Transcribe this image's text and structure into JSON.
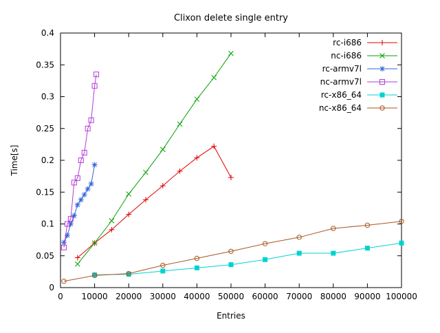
{
  "chart_data": {
    "type": "line",
    "title": "Clixon delete single entry",
    "xlabel": "Entries",
    "ylabel": "Time[s]",
    "xlim": [
      0,
      100000
    ],
    "ylim": [
      0,
      0.4
    ],
    "xticks": [
      0,
      10000,
      20000,
      30000,
      40000,
      50000,
      60000,
      70000,
      80000,
      90000,
      100000
    ],
    "xtick_labels": [
      "0",
      "10000",
      "20000",
      "30000",
      "40000",
      "50000",
      "60000",
      "70000",
      "80000",
      "90000",
      "100000"
    ],
    "yticks": [
      0,
      0.05,
      0.1,
      0.15,
      0.2,
      0.25,
      0.3,
      0.35,
      0.4
    ],
    "ytick_labels": [
      "0",
      "0.05",
      "0.1",
      "0.15",
      "0.2",
      "0.25",
      "0.3",
      "0.35",
      "0.4"
    ],
    "grid": false,
    "legend_position": "top-right",
    "background_color": "#ffffff",
    "border_color": "#000000",
    "series": [
      {
        "name": "rc-i686",
        "color": "#e00000",
        "marker": "plus",
        "x": [
          5000,
          10000,
          15000,
          20000,
          25000,
          30000,
          35000,
          40000,
          45000,
          50000
        ],
        "y": [
          0.047,
          0.07,
          0.091,
          0.115,
          0.138,
          0.16,
          0.183,
          0.204,
          0.222,
          0.173
        ]
      },
      {
        "name": "nc-i686",
        "color": "#00a000",
        "marker": "cross",
        "x": [
          5000,
          10000,
          15000,
          20000,
          25000,
          30000,
          35000,
          40000,
          45000,
          50000
        ],
        "y": [
          0.037,
          0.07,
          0.105,
          0.147,
          0.181,
          0.217,
          0.257,
          0.296,
          0.33,
          0.368
        ]
      },
      {
        "name": "rc-armv7l",
        "color": "#2e63d8",
        "marker": "asterisk",
        "x": [
          1000,
          2000,
          3000,
          4000,
          5000,
          6000,
          7000,
          8000,
          9000,
          10000
        ],
        "y": [
          0.071,
          0.082,
          0.1,
          0.113,
          0.13,
          0.138,
          0.146,
          0.155,
          0.163,
          0.193
        ]
      },
      {
        "name": "nc-armv7l",
        "color": "#b23ad6",
        "marker": "square-open",
        "x": [
          1000,
          2000,
          3000,
          4000,
          5000,
          6000,
          7000,
          8000,
          9000,
          10000,
          10500
        ],
        "y": [
          0.063,
          0.1,
          0.108,
          0.165,
          0.172,
          0.2,
          0.212,
          0.25,
          0.263,
          0.317,
          0.335
        ]
      },
      {
        "name": "rc-x86_64",
        "color": "#00d2d2",
        "marker": "square-filled",
        "x": [
          10000,
          20000,
          30000,
          40000,
          50000,
          60000,
          70000,
          80000,
          90000,
          100000
        ],
        "y": [
          0.02,
          0.021,
          0.026,
          0.031,
          0.036,
          0.044,
          0.054,
          0.054,
          0.062,
          0.07
        ]
      },
      {
        "name": "nc-x86_64",
        "color": "#a9541f",
        "marker": "circle-open",
        "x": [
          1000,
          10000,
          20000,
          30000,
          40000,
          50000,
          60000,
          70000,
          80000,
          90000,
          100000
        ],
        "y": [
          0.01,
          0.019,
          0.022,
          0.035,
          0.046,
          0.057,
          0.069,
          0.079,
          0.093,
          0.098,
          0.104
        ]
      }
    ]
  }
}
